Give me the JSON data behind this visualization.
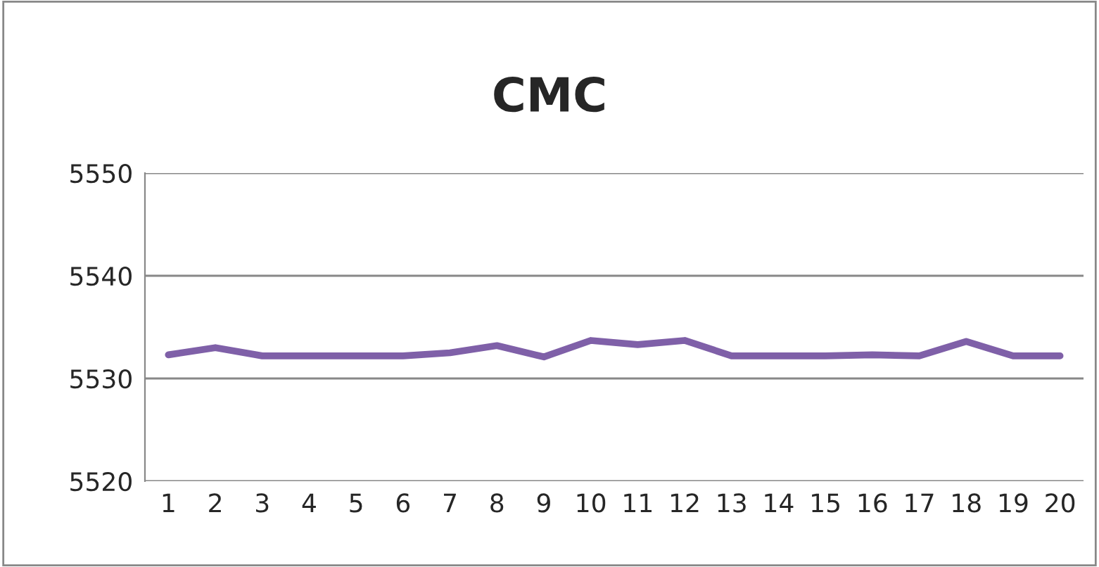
{
  "chart_data": {
    "type": "line",
    "title": "CMC",
    "categories": [
      "1",
      "2",
      "3",
      "4",
      "5",
      "6",
      "7",
      "8",
      "9",
      "10",
      "11",
      "12",
      "13",
      "14",
      "15",
      "16",
      "17",
      "18",
      "19",
      "20"
    ],
    "series": [
      {
        "color": "#7f60a8",
        "values": [
          5532.3,
          5533.0,
          5532.2,
          5532.2,
          5532.2,
          5532.2,
          5532.5,
          5533.2,
          5532.1,
          5533.7,
          5533.3,
          5533.7,
          5532.2,
          5532.2,
          5532.2,
          5532.3,
          5532.2,
          5533.6,
          5532.2,
          5532.2
        ]
      }
    ],
    "ylim": [
      5520,
      5550
    ],
    "yticks": [
      5520,
      5530,
      5540,
      5550
    ],
    "grid": "y",
    "marker": "none",
    "line_style": "solid"
  }
}
